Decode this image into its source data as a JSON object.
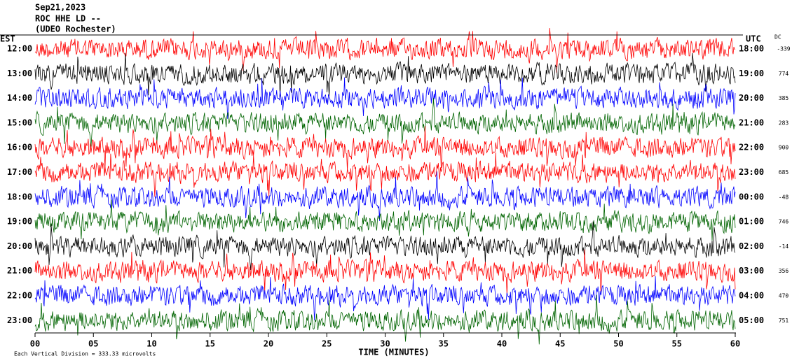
{
  "chart_data": {
    "type": "helicorder",
    "title_lines": [
      "Sep21,2023",
      "ROC HHE LD --",
      "(UDEO Rochester)"
    ],
    "left_axis_label": "EST",
    "right_axis_label": "UTC",
    "dc_label": "DC",
    "x_label": "TIME (MINUTES)",
    "footer": "Each Vertical Division =  333.33 microvolts",
    "xlim": [
      0,
      60
    ],
    "xticks": [
      {
        "value": 0,
        "label": "00"
      },
      {
        "value": 5,
        "label": "05"
      },
      10,
      15,
      20,
      25,
      30,
      35,
      40,
      45,
      50,
      55,
      60
    ],
    "rows": [
      {
        "est": "12:00",
        "utc": "18:00",
        "dc": -339,
        "color": "#ff0000"
      },
      {
        "est": "13:00",
        "utc": "19:00",
        "dc": 774,
        "color": "#000000"
      },
      {
        "est": "14:00",
        "utc": "20:00",
        "dc": 385,
        "color": "#0000ff"
      },
      {
        "est": "15:00",
        "utc": "21:00",
        "dc": 283,
        "color": "#006400"
      },
      {
        "est": "16:00",
        "utc": "22:00",
        "dc": 900,
        "color": "#ff0000"
      },
      {
        "est": "17:00",
        "utc": "23:00",
        "dc": 685,
        "color": "#ff0000"
      },
      {
        "est": "18:00",
        "utc": "00:00",
        "dc": -48,
        "color": "#0000ff"
      },
      {
        "est": "19:00",
        "utc": "01:00",
        "dc": 746,
        "color": "#006400"
      },
      {
        "est": "20:00",
        "utc": "02:00",
        "dc": -14,
        "color": "#000000"
      },
      {
        "est": "21:00",
        "utc": "03:00",
        "dc": 356,
        "color": "#ff0000"
      },
      {
        "est": "22:00",
        "utc": "04:00",
        "dc": 470,
        "color": "#0000ff"
      },
      {
        "est": "23:00",
        "utc": "05:00",
        "dc": 751,
        "color": "#006400"
      }
    ]
  }
}
